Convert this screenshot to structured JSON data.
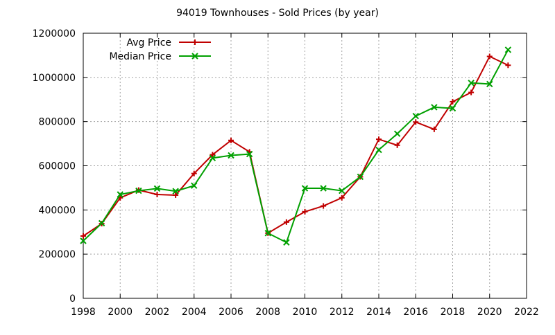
{
  "chart_data": {
    "type": "line",
    "title": "94019 Townhouses - Sold Prices (by year)",
    "xlabel": "",
    "ylabel": "",
    "xlim": [
      1998,
      2022
    ],
    "ylim": [
      0,
      1200000
    ],
    "x_ticks": [
      1998,
      2000,
      2002,
      2004,
      2006,
      2008,
      2010,
      2012,
      2014,
      2016,
      2018,
      2020,
      2022
    ],
    "y_ticks": [
      0,
      200000,
      400000,
      600000,
      800000,
      1000000,
      1200000
    ],
    "grid": true,
    "legend_position": "top-left",
    "series": [
      {
        "name": "Avg Price",
        "color": "#c00000",
        "marker": "plus",
        "x": [
          1998,
          1999,
          2000,
          2001,
          2002,
          2003,
          2004,
          2005,
          2006,
          2007,
          2008,
          2009,
          2010,
          2011,
          2012,
          2013,
          2014,
          2015,
          2016,
          2017,
          2018,
          2019,
          2020,
          2021
        ],
        "values": [
          282000,
          338000,
          455000,
          490000,
          470000,
          467000,
          565000,
          650000,
          715000,
          663000,
          295000,
          345000,
          392000,
          418000,
          455000,
          550000,
          720000,
          693000,
          798000,
          765000,
          890000,
          932000,
          1095000,
          1055000
        ]
      },
      {
        "name": "Median Price",
        "color": "#00a000",
        "marker": "x",
        "x": [
          1998,
          1999,
          2000,
          2001,
          2002,
          2003,
          2004,
          2005,
          2006,
          2007,
          2008,
          2009,
          2010,
          2011,
          2012,
          2013,
          2014,
          2015,
          2016,
          2017,
          2018,
          2019,
          2020,
          2021
        ],
        "values": [
          260000,
          340000,
          470000,
          487000,
          497000,
          485000,
          510000,
          635000,
          647000,
          653000,
          295000,
          253000,
          498000,
          498000,
          487000,
          550000,
          672000,
          745000,
          825000,
          865000,
          860000,
          975000,
          970000,
          1125000
        ]
      }
    ]
  }
}
